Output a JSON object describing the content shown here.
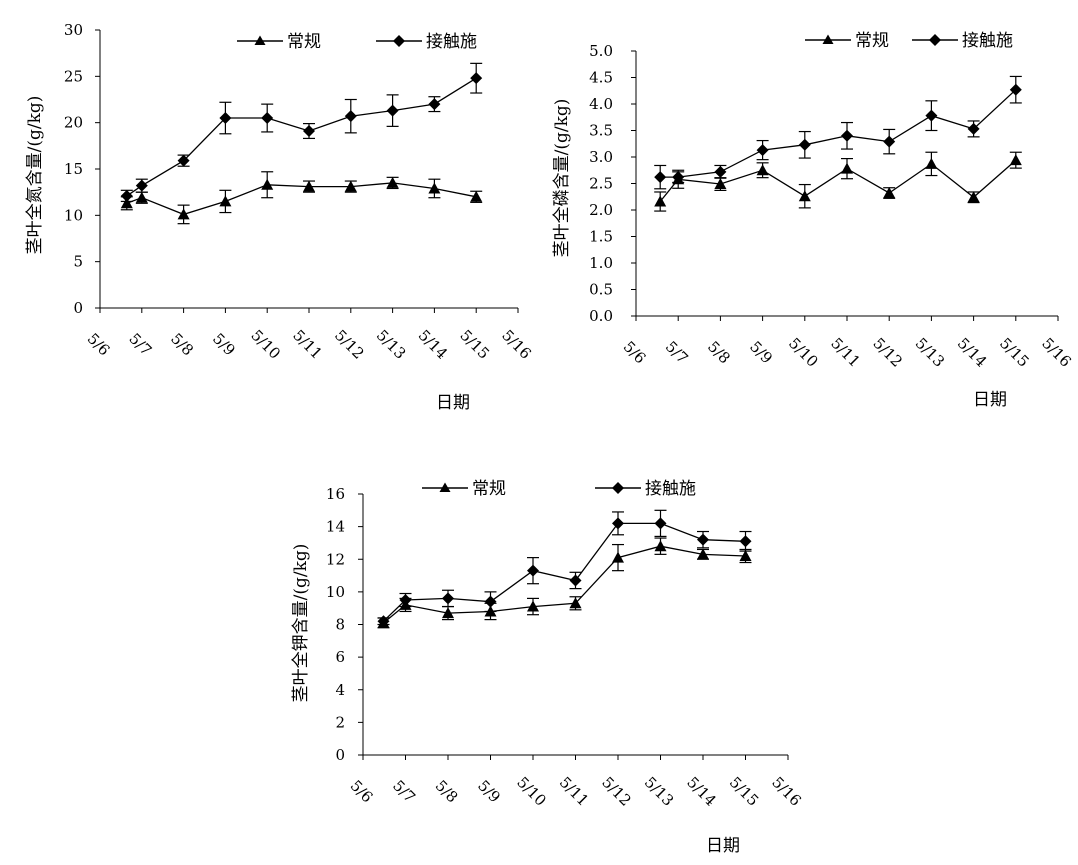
{
  "legend_labels": {
    "conventional": "常规",
    "contact": "接触施"
  },
  "chart_data": [
    {
      "type": "line",
      "title": "",
      "ylabel": "茎叶全氮含量/(g/kg)",
      "xlabel": "日期",
      "ylim": [
        0,
        30
      ],
      "yticks": [
        "0",
        "5",
        "10",
        "15",
        "20",
        "25",
        "30"
      ],
      "x_ticks": [
        "5/6",
        "5/7",
        "5/8",
        "5/9",
        "5/10",
        "5/11",
        "5/12",
        "5/13",
        "5/14",
        "5/15",
        "5/16"
      ],
      "series": [
        {
          "name": "常规",
          "marker": "triangle",
          "x": [
            "5/7",
            "5/7",
            "5/8",
            "5/9",
            "5/10",
            "5/11",
            "5/12",
            "5/13",
            "5/14",
            "5/15"
          ],
          "values": [
            11.3,
            11.9,
            10.1,
            11.5,
            13.3,
            13.1,
            13.1,
            13.5,
            12.9,
            12.0
          ],
          "errors": [
            0.7,
            0.6,
            1.0,
            1.2,
            1.4,
            0.6,
            0.6,
            0.6,
            1.0,
            0.6
          ]
        },
        {
          "name": "接触施",
          "marker": "diamond",
          "x": [
            "5/7",
            "5/7",
            "5/8",
            "5/9",
            "5/10",
            "5/11",
            "5/12",
            "5/13",
            "5/14",
            "5/15"
          ],
          "values": [
            12.1,
            13.2,
            15.9,
            20.5,
            20.5,
            19.1,
            20.7,
            21.3,
            22.0,
            24.8
          ],
          "errors": [
            0.6,
            0.7,
            0.6,
            1.7,
            1.5,
            0.8,
            1.8,
            1.7,
            0.8,
            1.6
          ]
        }
      ]
    },
    {
      "type": "line",
      "title": "",
      "ylabel": "茎叶全磷含量/(g/kg)",
      "xlabel": "日期",
      "ylim": [
        0,
        5
      ],
      "yticks": [
        "0.0",
        "0.5",
        "1.0",
        "1.5",
        "2.0",
        "2.5",
        "3.0",
        "3.5",
        "4.0",
        "4.5",
        "5.0"
      ],
      "x_ticks": [
        "5/6",
        "5/7",
        "5/8",
        "5/9",
        "5/10",
        "5/11",
        "5/12",
        "5/13",
        "5/14",
        "5/15",
        "5/16"
      ],
      "series": [
        {
          "name": "常规",
          "marker": "triangle",
          "x": [
            "5/7",
            "5/7",
            "5/8",
            "5/9",
            "5/10",
            "5/11",
            "5/12",
            "5/13",
            "5/14",
            "5/15"
          ],
          "values": [
            2.16,
            2.58,
            2.49,
            2.75,
            2.26,
            2.78,
            2.32,
            2.87,
            2.24,
            2.94
          ],
          "errors": [
            0.18,
            0.17,
            0.12,
            0.14,
            0.22,
            0.19,
            0.1,
            0.22,
            0.1,
            0.15
          ]
        },
        {
          "name": "接触施",
          "marker": "diamond",
          "x": [
            "5/7",
            "5/7",
            "5/8",
            "5/9",
            "5/10",
            "5/11",
            "5/12",
            "5/13",
            "5/14",
            "5/15"
          ],
          "values": [
            2.62,
            2.62,
            2.72,
            3.13,
            3.23,
            3.4,
            3.29,
            3.78,
            3.53,
            4.27
          ],
          "errors": [
            0.22,
            0.1,
            0.12,
            0.18,
            0.25,
            0.25,
            0.23,
            0.28,
            0.15,
            0.25
          ]
        }
      ]
    },
    {
      "type": "line",
      "title": "",
      "ylabel": "茎叶全钾含量/(g/kg)",
      "xlabel": "日期",
      "ylim": [
        0,
        16
      ],
      "yticks": [
        "0",
        "2",
        "4",
        "6",
        "8",
        "10",
        "12",
        "14",
        "16"
      ],
      "x_ticks": [
        "5/6",
        "5/7",
        "5/8",
        "5/9",
        "5/10",
        "5/11",
        "5/12",
        "5/13",
        "5/14",
        "5/15",
        "5/16"
      ],
      "series": [
        {
          "name": "常规",
          "marker": "triangle",
          "x": [
            "5/7",
            "5/7",
            "5/8",
            "5/9",
            "5/10",
            "5/11",
            "5/12",
            "5/13",
            "5/14",
            "5/15"
          ],
          "values": [
            8.1,
            9.2,
            8.7,
            8.8,
            9.1,
            9.3,
            12.1,
            12.8,
            12.3,
            12.2
          ],
          "errors": [
            0.3,
            0.4,
            0.4,
            0.5,
            0.5,
            0.4,
            0.8,
            0.5,
            0.3,
            0.4
          ]
        },
        {
          "name": "接触施",
          "marker": "diamond",
          "x": [
            "5/7",
            "5/7",
            "5/8",
            "5/9",
            "5/10",
            "5/11",
            "5/12",
            "5/13",
            "5/14",
            "5/15"
          ],
          "values": [
            8.2,
            9.5,
            9.6,
            9.4,
            11.3,
            10.7,
            14.2,
            14.2,
            13.2,
            13.1
          ],
          "errors": [
            0.2,
            0.4,
            0.5,
            0.6,
            0.8,
            0.5,
            0.7,
            0.8,
            0.5,
            0.6
          ]
        }
      ]
    }
  ]
}
